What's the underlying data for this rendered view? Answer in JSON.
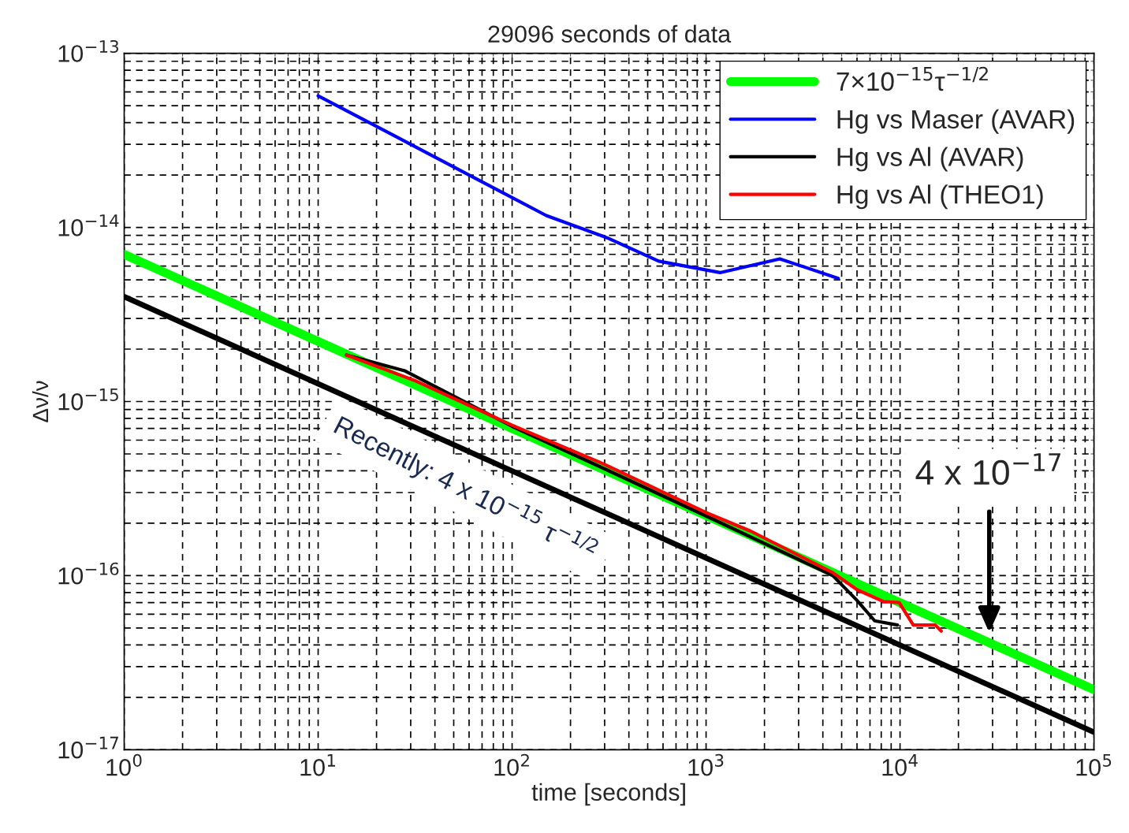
{
  "chart_data": {
    "type": "line",
    "title": "29096 seconds of data",
    "xlabel": "time [seconds]",
    "ylabel": "Δν/ν",
    "log": "xy",
    "grid": true,
    "legend": "top right",
    "xlim": [
      1,
      100000
    ],
    "ylim": [
      1e-17,
      1e-13
    ],
    "xticks": [
      {
        "value": 1,
        "label": "10$^{0}$"
      },
      {
        "value": 10,
        "label": "10$^{1}$"
      },
      {
        "value": 100,
        "label": "10$^{2}$"
      },
      {
        "value": 1000,
        "label": "10$^{3}$"
      },
      {
        "value": 10000,
        "label": "10$^{4}$"
      },
      {
        "value": 100000,
        "label": "10$^{5}$"
      }
    ],
    "yticks": [
      {
        "value": 1e-17,
        "label": "10$^{−17}$"
      },
      {
        "value": 1e-16,
        "label": "10$^{−16}$"
      },
      {
        "value": 1e-15,
        "label": "10$^{−15}$"
      },
      {
        "value": 1e-14,
        "label": "10$^{−14}$"
      },
      {
        "value": 1e-13,
        "label": "10$^{−13}$"
      }
    ],
    "series": [
      {
        "name": "7×10$^{−15}$τ$^{−1/2}$",
        "color": "#00ff00",
        "x": [
          1,
          100000
        ],
        "values": [
          7e-15,
          2.21e-17
        ]
      },
      {
        "name": "Hg vs Maser (AVAR)",
        "color": "#0000ff",
        "x": [
          10,
          60,
          150,
          310,
          570,
          1180,
          2400,
          4800
        ],
        "values": [
          5.7e-14,
          2e-14,
          1.17e-14,
          8.7e-15,
          6.4e-15,
          5.5e-15,
          6.6e-15,
          5.1e-15
        ]
      },
      {
        "name": "Hg vs Al (AVAR)",
        "color": "#000000",
        "x": [
          14,
          28,
          100,
          300,
          1000,
          4500,
          6000,
          7400,
          9700
        ],
        "values": [
          1.85e-15,
          1.5e-15,
          7.2e-16,
          4.1e-16,
          2.2e-16,
          1e-16,
          7.2e-17,
          5.5e-17,
          5.2e-17
        ]
      },
      {
        "name": "Hg vs Al (THEO1)",
        "color": "#ff0000",
        "x": [
          14,
          32,
          100,
          300,
          1000,
          1700,
          4500,
          6000,
          8200,
          9900,
          11700,
          15200,
          16300
        ],
        "values": [
          1.85e-15,
          1.31e-15,
          7.3e-16,
          4.35e-16,
          2.3e-16,
          1.8e-16,
          1.04e-16,
          8.3e-17,
          7.1e-17,
          7e-17,
          5.2e-17,
          5.2e-17,
          4.8e-17
        ]
      },
      {
        "color": "#000000",
        "x": [
          1,
          100000
        ],
        "values": [
          4e-15,
          1.26e-17
        ]
      }
    ],
    "annotations": [
      "Recently: 4 x 10$^{−15}$ τ$^{−1/2}$",
      "4 x 10$^{−17}$"
    ]
  }
}
